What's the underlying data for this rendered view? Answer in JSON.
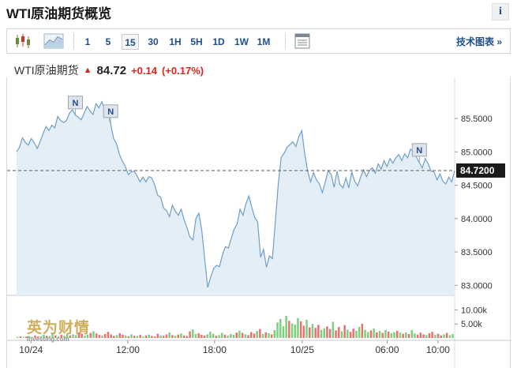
{
  "page": {
    "title": "WTI原油期货概览",
    "info_label": "i"
  },
  "toolbar": {
    "icons": [
      "candlestick-chart-icon",
      "area-chart-icon",
      "chart-settings-icon"
    ],
    "timeframes": [
      "1",
      "5",
      "15",
      "30",
      "1H",
      "5H",
      "1D",
      "1W",
      "1M"
    ],
    "active_timeframe": "15",
    "tech_chart_label": "技术图表 »"
  },
  "quote": {
    "name": "WTI原油期货",
    "price": "84.72",
    "change": "+0.14",
    "change_pct": "(+0.17%)",
    "up_color": "#e0231d"
  },
  "watermark": {
    "cn": "英为财情",
    "en": "Investing.com"
  },
  "colors": {
    "line": "#6f9fc7",
    "fill": "#e3eef7",
    "vol_up": "#7ecf7e",
    "vol_down": "#e57373",
    "accent": "#1f4e8c"
  },
  "chart_data": {
    "type": "area",
    "ylim": [
      82.85,
      85.95
    ],
    "yticks": [
      "85.5000",
      "85.0000",
      "84.5000",
      "84.0000",
      "83.5000",
      "83.0000"
    ],
    "current_value": 84.72,
    "current_label": "84.7200",
    "xticks": [
      "10/24",
      "12:00",
      "18:00",
      "10/25",
      "06:00",
      "10:00"
    ],
    "news_markers": [
      "N",
      "N",
      "N"
    ],
    "price_series": [
      85.0,
      85.07,
      85.21,
      85.14,
      85.1,
      85.2,
      85.14,
      85.05,
      85.15,
      85.27,
      85.38,
      85.32,
      85.4,
      85.36,
      85.53,
      85.47,
      85.44,
      85.47,
      85.58,
      85.63,
      85.55,
      85.52,
      85.48,
      85.58,
      85.68,
      85.61,
      85.56,
      85.72,
      85.66,
      85.75,
      85.64,
      85.58,
      85.42,
      85.2,
      85.12,
      84.96,
      84.86,
      84.78,
      84.66,
      84.7,
      84.71,
      84.64,
      84.55,
      84.62,
      84.55,
      84.63,
      84.61,
      84.5,
      84.35,
      84.32,
      84.16,
      84.12,
      84.03,
      84.2,
      84.11,
      84.05,
      84.14,
      83.98,
      83.86,
      83.72,
      83.68,
      84.0,
      84.08,
      83.82,
      83.39,
      82.97,
      83.12,
      83.25,
      83.3,
      83.28,
      83.45,
      83.58,
      83.56,
      83.7,
      83.84,
      83.92,
      84.14,
      84.05,
      84.22,
      84.34,
      84.17,
      84.02,
      83.95,
      83.42,
      83.54,
      83.27,
      83.44,
      83.4,
      83.95,
      84.51,
      84.92,
      84.98,
      85.07,
      85.11,
      85.15,
      85.08,
      85.23,
      85.32,
      84.98,
      84.71,
      84.55,
      84.69,
      84.58,
      84.52,
      84.39,
      84.55,
      84.72,
      84.66,
      84.47,
      84.71,
      84.51,
      84.46,
      84.61,
      84.46,
      84.7,
      84.56,
      84.49,
      84.62,
      84.73,
      84.63,
      84.72,
      84.76,
      84.68,
      84.82,
      84.74,
      84.87,
      84.78,
      84.9,
      84.83,
      84.91,
      84.96,
      84.87,
      84.97,
      84.91,
      85.04,
      85.0,
      84.92,
      84.84,
      84.76,
      84.9,
      84.82,
      84.71,
      84.7,
      84.58,
      84.67,
      84.56,
      84.52,
      84.62,
      84.55,
      84.72
    ],
    "news_index": [
      20,
      32,
      137
    ],
    "volume_legend": [
      "10.00k",
      "5.00k"
    ],
    "volume_max_k": 13.5,
    "volume_series": [
      0.4,
      0.6,
      0.3,
      0.5,
      0.7,
      0.4,
      0.9,
      0.5,
      0.6,
      1.2,
      0.8,
      0.7,
      1.4,
      0.9,
      0.6,
      1.1,
      0.8,
      1.6,
      0.9,
      1.3,
      1.0,
      2.0,
      1.5,
      0.8,
      1.2,
      1.8,
      2.4,
      1.6,
      1.1,
      0.9,
      1.4,
      2.2,
      1.3,
      0.8,
      1.0,
      1.7,
      1.2,
      0.9,
      0.6,
      1.3,
      0.8,
      0.7,
      1.1,
      0.5,
      0.9,
      1.2,
      0.7,
      0.6,
      1.5,
      0.9,
      0.8,
      1.3,
      1.9,
      1.0,
      0.8,
      1.2,
      1.6,
      0.9,
      0.7,
      2.4,
      3.0,
      1.4,
      1.7,
      1.1,
      0.9,
      1.3,
      2.2,
      1.5,
      0.8,
      1.0,
      1.8,
      1.2,
      0.9,
      1.4,
      1.1,
      1.9,
      2.6,
      1.8,
      1.3,
      1.0,
      2.1,
      1.6,
      2.5,
      3.2,
      1.4,
      2.0,
      1.7,
      1.3,
      2.8,
      5.5,
      6.8,
      4.2,
      7.9,
      6.1,
      5.2,
      4.8,
      7.1,
      5.9,
      4.4,
      6.5,
      3.8,
      5.0,
      3.6,
      4.7,
      2.9,
      3.5,
      4.1,
      3.2,
      5.8,
      2.7,
      3.9,
      2.4,
      4.6,
      3.0,
      2.2,
      3.3,
      2.6,
      4.0,
      5.1,
      2.9,
      2.1,
      2.7,
      3.4,
      2.0,
      2.5,
      1.8,
      2.9,
      2.3,
      1.7,
      2.1,
      2.6,
      1.9,
      1.5,
      2.0,
      1.4,
      2.8,
      1.6,
      1.2,
      1.9,
      1.3,
      1.0,
      1.7,
      2.2,
      1.1,
      1.5,
      0.9,
      1.3,
      1.8,
      1.0,
      1.4
    ],
    "volume_up": [
      1,
      0,
      1,
      0,
      1,
      1,
      0,
      0,
      1,
      1,
      0,
      1,
      1,
      0,
      1,
      0,
      1,
      1,
      0,
      1,
      1,
      0,
      0,
      1,
      1,
      0,
      1,
      0,
      0,
      1,
      0,
      0,
      0,
      0,
      1,
      0,
      0,
      1,
      0,
      1,
      0,
      1,
      0,
      1,
      0,
      1,
      0,
      0,
      0,
      1,
      0,
      0,
      1,
      0,
      1,
      0,
      1,
      0,
      0,
      0,
      1,
      1,
      0,
      0,
      0,
      1,
      1,
      1,
      0,
      1,
      1,
      0,
      1,
      1,
      1,
      0,
      1,
      0,
      1,
      0,
      0,
      0,
      1,
      0,
      1,
      0,
      1,
      0,
      1,
      1,
      1,
      1,
      1,
      0,
      1,
      1,
      1,
      0,
      0,
      1,
      0,
      1,
      0,
      0,
      1,
      1,
      0,
      0,
      1,
      0,
      0,
      1,
      0,
      1,
      0,
      0,
      1,
      1,
      0,
      1,
      1,
      0,
      1,
      0,
      1,
      0,
      1,
      0,
      1,
      1,
      0,
      1,
      0,
      1,
      0,
      1,
      1,
      0,
      0,
      0,
      1,
      0,
      0,
      1,
      0,
      0,
      1,
      0,
      1,
      1
    ]
  }
}
